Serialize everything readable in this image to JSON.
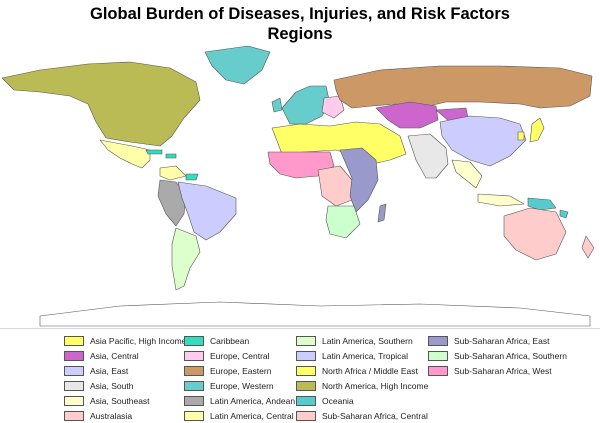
{
  "title": {
    "line1": "Global Burden of Diseases, Injuries, and Risk Factors",
    "line2": "Regions"
  },
  "legend": [
    {
      "label": "Asia Pacific, High Income",
      "color": "#ffff66"
    },
    {
      "label": "Asia, Central",
      "color": "#cc66cc"
    },
    {
      "label": "Asia, East",
      "color": "#ccccff"
    },
    {
      "label": "Asia, South",
      "color": "#e8e8e8"
    },
    {
      "label": "Asia, Southeast",
      "color": "#ffffcc"
    },
    {
      "label": "Australasia",
      "color": "#ffcccc"
    },
    {
      "label": "Caribbean",
      "color": "#33ddbb"
    },
    {
      "label": "Europe, Central",
      "color": "#ffccee"
    },
    {
      "label": "Europe, Eastern",
      "color": "#cc9966"
    },
    {
      "label": "Europe, Western",
      "color": "#66cccc"
    },
    {
      "label": "Latin America, Andean",
      "color": "#aaaaaa"
    },
    {
      "label": "Latin America, Central",
      "color": "#ffffaa"
    },
    {
      "label": "Latin America, Southern",
      "color": "#ddffcc"
    },
    {
      "label": "Latin America, Tropical",
      "color": "#ccccff"
    },
    {
      "label": "North Africa / Middle East",
      "color": "#ffff66"
    },
    {
      "label": "North America, High Income",
      "color": "#bbbb55"
    },
    {
      "label": "Oceania",
      "color": "#55cccc"
    },
    {
      "label": "Sub-Saharan Africa, Central",
      "color": "#ffcccc"
    },
    {
      "label": "Sub-Saharan Africa, East",
      "color": "#9999cc"
    },
    {
      "label": "Sub-Saharan Africa, Southern",
      "color": "#ccffcc"
    },
    {
      "label": "Sub-Saharan Africa, West",
      "color": "#ff99cc"
    }
  ]
}
